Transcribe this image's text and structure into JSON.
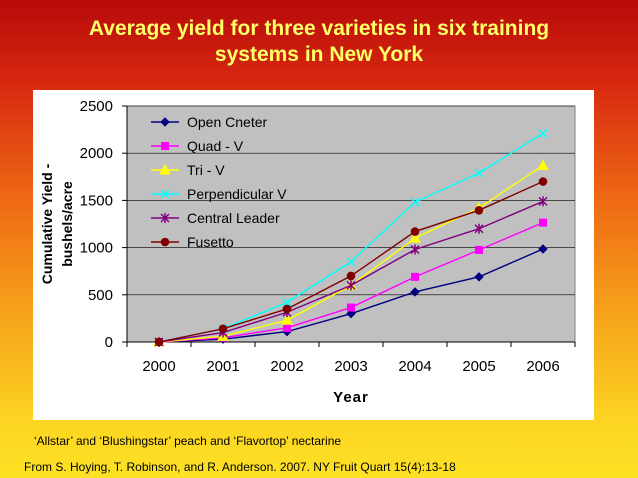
{
  "slide": {
    "title_line1": "Average yield for three varieties in six training",
    "title_line2": "systems in New York",
    "caption": "‘Allstar’ and ‘Blushingstar’ peach and ‘Flavortop’ nectarine",
    "source": "From S. Hoying, T. Robinson, and R. Anderson. 2007. NY Fruit Quart 15(4):13-18"
  },
  "chart_data": {
    "type": "line",
    "title": "Average yield for three varieties in six training systems in New York",
    "xlabel": "Year",
    "ylabel_line1": "Cumulative Yield -",
    "ylabel_line2": "bushels/acre",
    "x": [
      "2000",
      "2001",
      "2002",
      "2003",
      "2004",
      "2005",
      "2006"
    ],
    "ylim": [
      0,
      2500
    ],
    "yticks": [
      0,
      500,
      1000,
      1500,
      2000,
      2500
    ],
    "legend_position": "top-left",
    "plot_background": "#c0c0c0",
    "series": [
      {
        "name": "Open Cneter",
        "color": "#000080",
        "marker": "diamond",
        "values": [
          0,
          30,
          110,
          300,
          530,
          690,
          985
        ]
      },
      {
        "name": "Quad - V",
        "color": "#ff00ff",
        "marker": "square",
        "values": [
          0,
          45,
          150,
          365,
          690,
          975,
          1265
        ]
      },
      {
        "name": "Tri - V",
        "color": "#ffff00",
        "marker": "triangle",
        "values": [
          0,
          60,
          230,
          600,
          1100,
          1420,
          1870
        ]
      },
      {
        "name": "Perpendicular V",
        "color": "#00ffff",
        "marker": "x",
        "values": [
          0,
          140,
          420,
          850,
          1480,
          1790,
          2210
        ]
      },
      {
        "name": "Central Leader",
        "color": "#800080",
        "marker": "star",
        "values": [
          0,
          100,
          315,
          600,
          980,
          1200,
          1490
        ]
      },
      {
        "name": "Fusetto",
        "color": "#800000",
        "marker": "circle",
        "values": [
          0,
          140,
          350,
          700,
          1170,
          1395,
          1700
        ]
      }
    ]
  }
}
